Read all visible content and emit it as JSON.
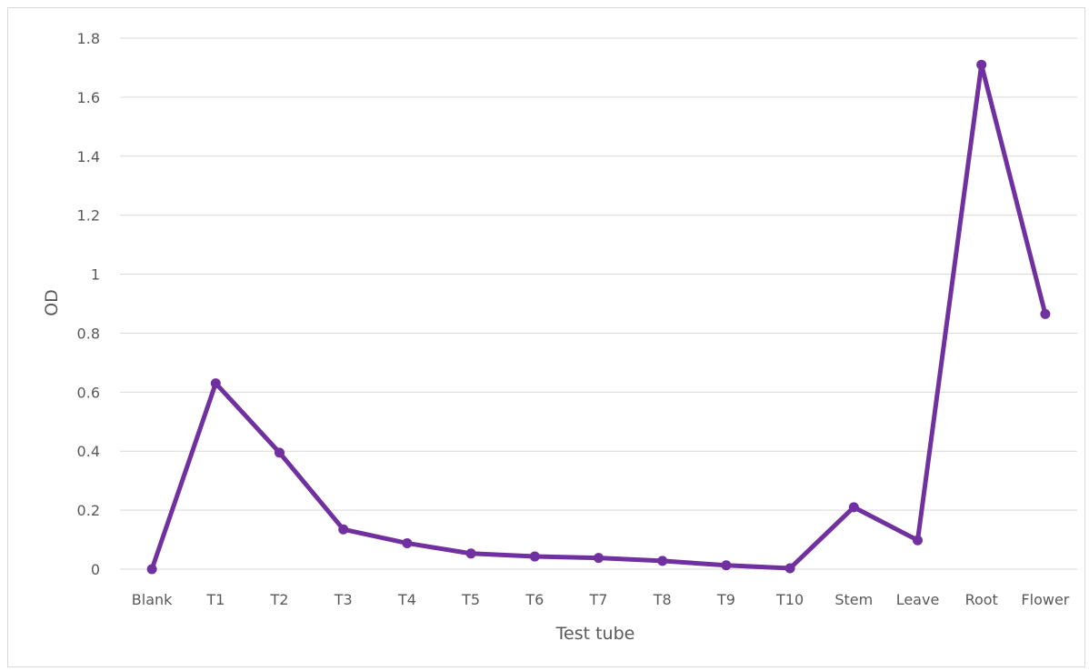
{
  "chart_data": {
    "type": "line",
    "title": "",
    "xlabel": "Test tube",
    "ylabel": "OD",
    "categories": [
      "Blank",
      "T1",
      "T2",
      "T3",
      "T4",
      "T5",
      "T6",
      "T7",
      "T8",
      "T9",
      "T10",
      "Stem",
      "Leave",
      "Root",
      "Flower"
    ],
    "series": [
      {
        "values": [
          0,
          0.63,
          0.395,
          0.135,
          0.088,
          0.053,
          0.043,
          0.038,
          0.028,
          0.013,
          0.003,
          0.21,
          0.098,
          1.71,
          0.865
        ],
        "color": "#7030a0"
      }
    ],
    "ylim": [
      0,
      1.8
    ],
    "yticks": [
      "0",
      "0.2",
      "0.4",
      "0.6",
      "0.8",
      "1",
      "1.2",
      "1.4",
      "1.6",
      "1.8"
    ],
    "grid": true,
    "legend": "none"
  }
}
